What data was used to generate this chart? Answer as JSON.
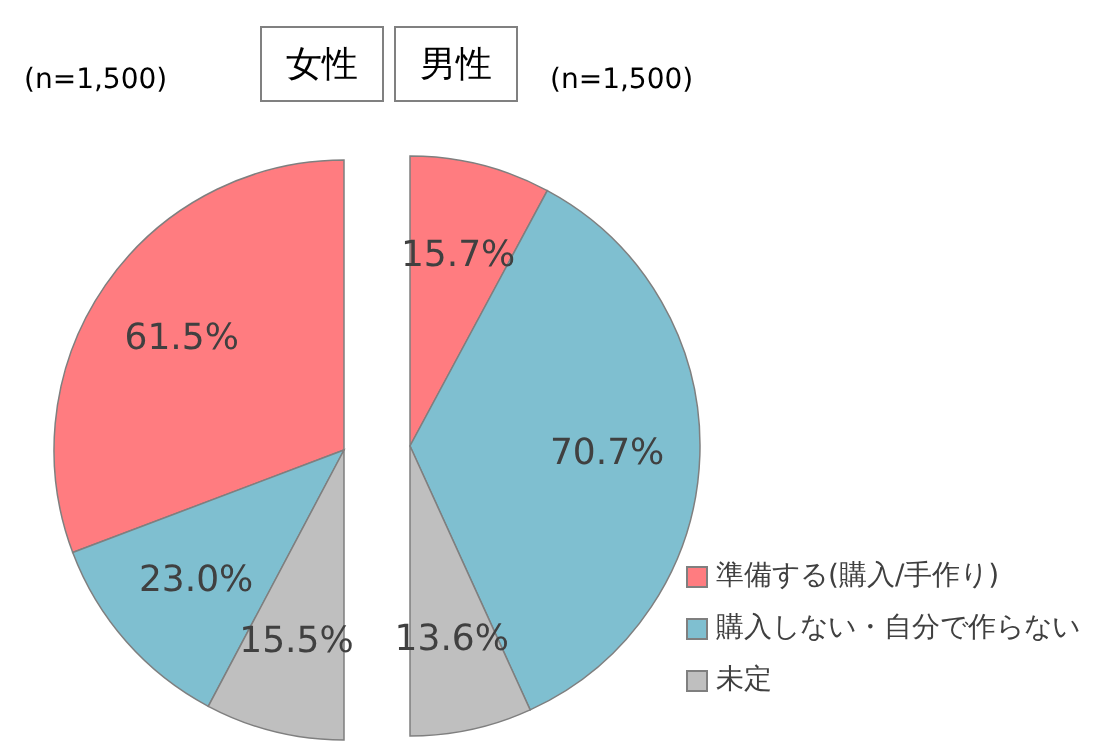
{
  "chart_data": [
    {
      "type": "pie",
      "title": "女性",
      "subtitle": "(n=1,500)",
      "values": [
        61.5,
        23.0,
        15.5
      ],
      "value_labels": [
        "61.5%",
        "23.0%",
        "15.5%"
      ],
      "colors": [
        "#ff7c80",
        "#7fbfd0",
        "#bfbfbf"
      ],
      "legend": false
    },
    {
      "type": "pie",
      "title": "男性",
      "subtitle": "(n=1,500)",
      "categories": [
        "準備する(購入/手作り)",
        "購入しない・自分で作らない",
        "未定"
      ],
      "values": [
        15.7,
        70.7,
        13.6
      ],
      "value_labels": [
        "15.7%",
        "70.7%",
        "13.6%"
      ],
      "colors": [
        "#ff7c80",
        "#7fbfd0",
        "#bfbfbf"
      ],
      "legend": "bottom right"
    }
  ]
}
